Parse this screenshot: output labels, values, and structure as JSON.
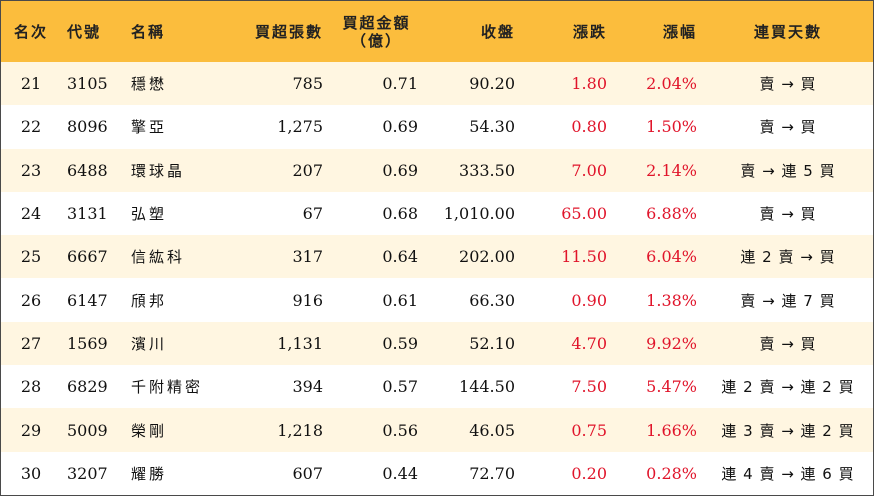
{
  "headers": {
    "rank": "名次",
    "code": "代號",
    "name": "名稱",
    "net_buy_lots": "買超張數",
    "net_buy_amount_line1": "買超金額",
    "net_buy_amount_line2": "（億）",
    "close": "收盤",
    "change": "漲跌",
    "change_pct": "漲幅",
    "consecutive_days": "連買天數"
  },
  "colors": {
    "header_bg": "#fbbd3d",
    "odd_row_bg": "#fff6e1",
    "up_text": "#e0142a"
  },
  "rows": [
    {
      "rank": "21",
      "code": "3105",
      "name": "穩懋",
      "lots": "785",
      "amount": "0.71",
      "close": "90.20",
      "change": "1.80",
      "pct": "2.04%",
      "days": "賣 → 買"
    },
    {
      "rank": "22",
      "code": "8096",
      "name": "擎亞",
      "lots": "1,275",
      "amount": "0.69",
      "close": "54.30",
      "change": "0.80",
      "pct": "1.50%",
      "days": "賣 → 買"
    },
    {
      "rank": "23",
      "code": "6488",
      "name": "環球晶",
      "lots": "207",
      "amount": "0.69",
      "close": "333.50",
      "change": "7.00",
      "pct": "2.14%",
      "days": "賣 → 連 5 買"
    },
    {
      "rank": "24",
      "code": "3131",
      "name": "弘塑",
      "lots": "67",
      "amount": "0.68",
      "close": "1,010.00",
      "change": "65.00",
      "pct": "6.88%",
      "days": "賣 → 買"
    },
    {
      "rank": "25",
      "code": "6667",
      "name": "信紘科",
      "lots": "317",
      "amount": "0.64",
      "close": "202.00",
      "change": "11.50",
      "pct": "6.04%",
      "days": "連 2 賣 → 買"
    },
    {
      "rank": "26",
      "code": "6147",
      "name": "頎邦",
      "lots": "916",
      "amount": "0.61",
      "close": "66.30",
      "change": "0.90",
      "pct": "1.38%",
      "days": "賣 → 連 7 買"
    },
    {
      "rank": "27",
      "code": "1569",
      "name": "濱川",
      "lots": "1,131",
      "amount": "0.59",
      "close": "52.10",
      "change": "4.70",
      "pct": "9.92%",
      "days": "賣 → 買"
    },
    {
      "rank": "28",
      "code": "6829",
      "name": "千附精密",
      "lots": "394",
      "amount": "0.57",
      "close": "144.50",
      "change": "7.50",
      "pct": "5.47%",
      "days": "連 2 賣 → 連 2 買"
    },
    {
      "rank": "29",
      "code": "5009",
      "name": "榮剛",
      "lots": "1,218",
      "amount": "0.56",
      "close": "46.05",
      "change": "0.75",
      "pct": "1.66%",
      "days": "連 3 賣 → 連 2 買"
    },
    {
      "rank": "30",
      "code": "3207",
      "name": "耀勝",
      "lots": "607",
      "amount": "0.44",
      "close": "72.70",
      "change": "0.20",
      "pct": "0.28%",
      "days": "連 4 賣 → 連 6 買"
    }
  ]
}
